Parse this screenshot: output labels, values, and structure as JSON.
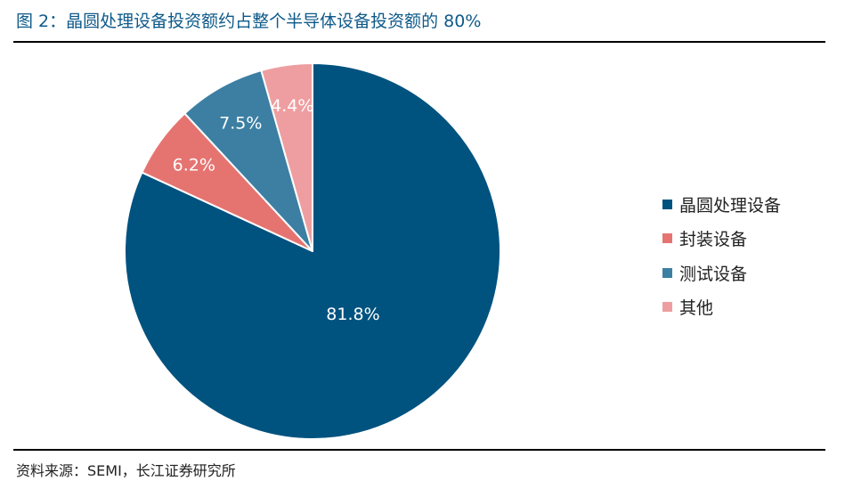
{
  "header": {
    "title": "图 2：晶圆处理设备投资额约占整个半导体设备投资额的 80%"
  },
  "footer": {
    "source": "资料来源：SEMI，长江证券研究所"
  },
  "chart_data": {
    "type": "pie",
    "title": "",
    "legend_position": "right",
    "start_angle": "12 o'clock, clockwise",
    "categories": [
      "晶圆处理设备",
      "封装设备",
      "测试设备",
      "其他"
    ],
    "values": [
      81.8,
      6.2,
      7.5,
      4.4
    ],
    "labels": [
      "81.8%",
      "6.2%",
      "7.5%",
      "4.4%"
    ],
    "colors": [
      "#00527f",
      "#e57471",
      "#3c7fa3",
      "#ee9ea0"
    ],
    "label_color": "#ffffff"
  }
}
